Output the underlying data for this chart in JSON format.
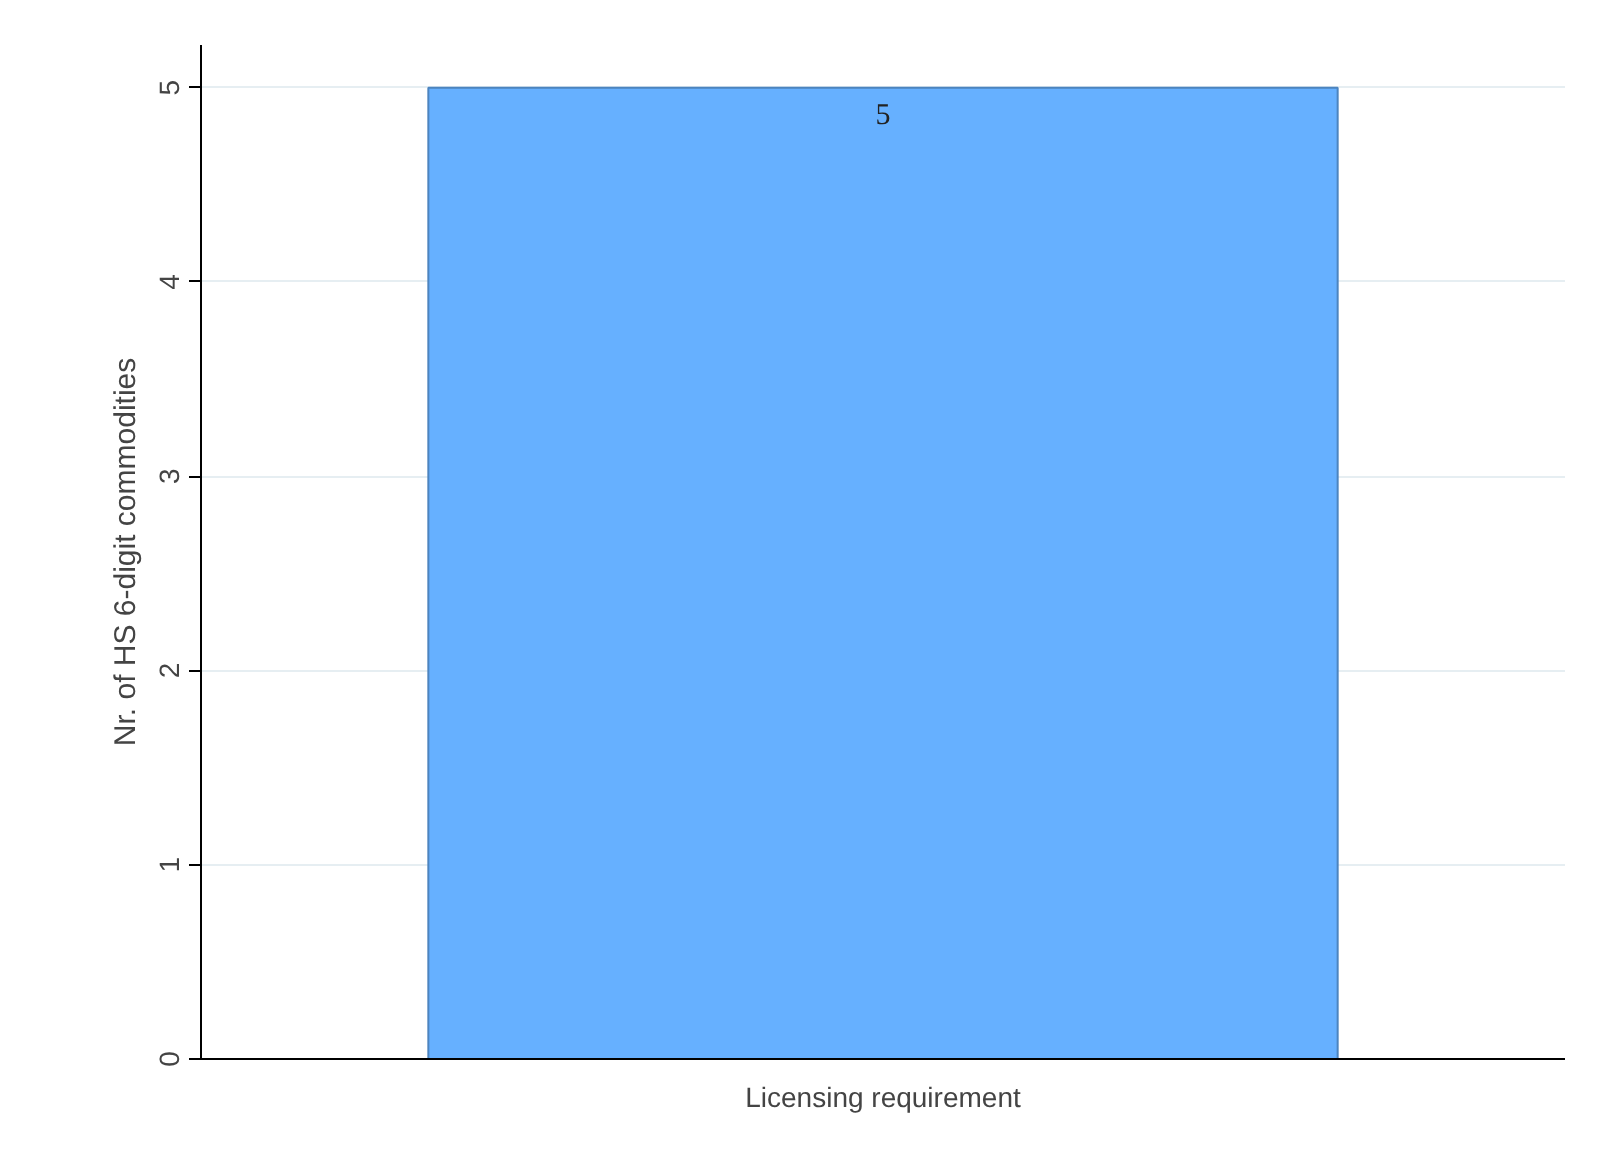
{
  "chart_data": {
    "type": "bar",
    "ylabel": "Nr. of HS 6-digit commodities",
    "categories": [
      "Licensing requirement"
    ],
    "values": [
      5
    ],
    "color": "#66b0ff",
    "ylim": [
      0,
      5.22
    ],
    "yticks": [
      0,
      1,
      2,
      3,
      4,
      5
    ],
    "grid": "y",
    "data_labels": true
  }
}
